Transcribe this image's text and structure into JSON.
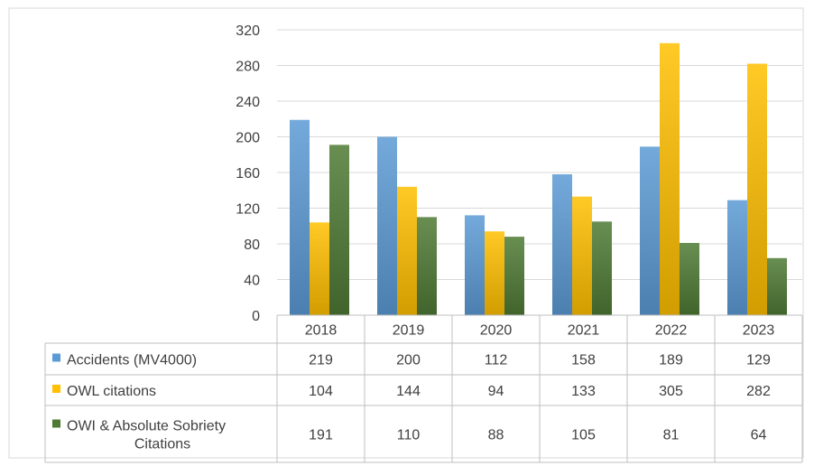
{
  "chart_data": {
    "type": "bar",
    "title": "",
    "xlabel": "",
    "ylabel": "",
    "ylim": [
      0,
      320
    ],
    "yticks": [
      0,
      40,
      80,
      120,
      160,
      200,
      240,
      280,
      320
    ],
    "grid": true,
    "legend_placement": "data-table-left",
    "categories": [
      "2018",
      "2019",
      "2020",
      "2021",
      "2022",
      "2023"
    ],
    "series": [
      {
        "name": "Accidents  (MV4000)",
        "name_lines": [
          "Accidents  (MV4000)"
        ],
        "color": "#5b9bd5",
        "values": [
          219,
          200,
          112,
          158,
          189,
          129
        ]
      },
      {
        "name": "OWL citations",
        "name_lines": [
          "OWL citations"
        ],
        "color": "#ffc000",
        "values": [
          104,
          144,
          94,
          133,
          305,
          282
        ]
      },
      {
        "name": "OWI & Absolute Sobriety Citations",
        "name_lines": [
          "OWI & Absolute Sobriety",
          "Citations"
        ],
        "color": "#4e7a34",
        "values": [
          191,
          110,
          88,
          105,
          81,
          64
        ]
      }
    ]
  }
}
